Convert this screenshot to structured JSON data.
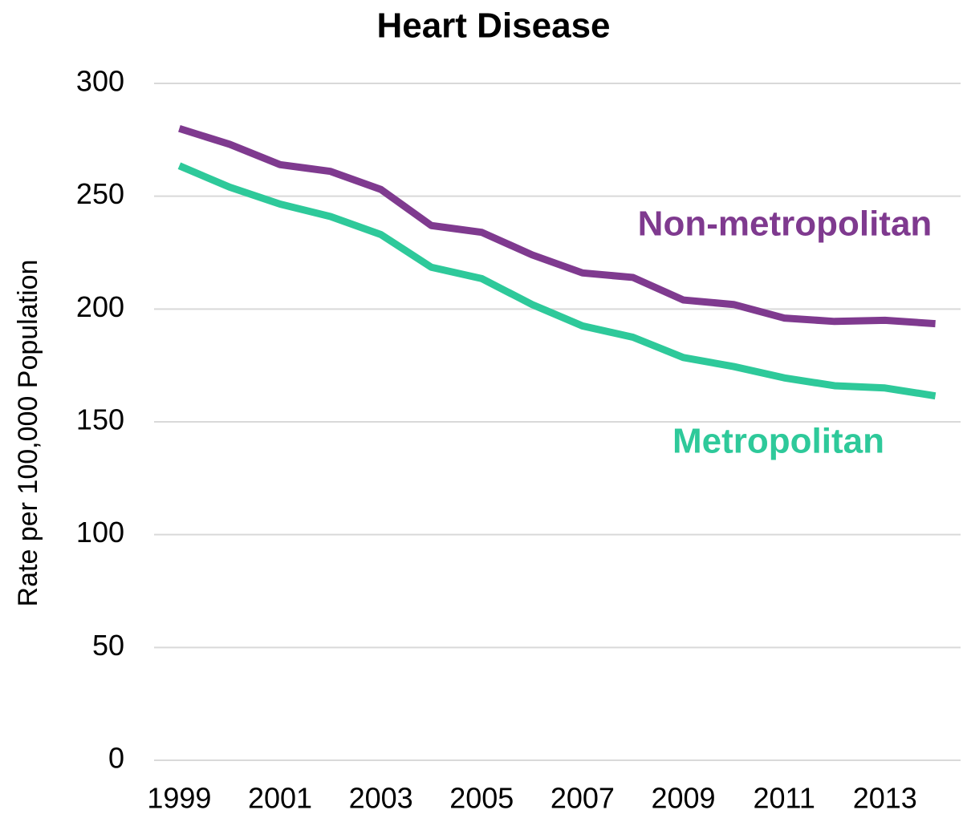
{
  "chart_data": {
    "type": "line",
    "title": "Heart Disease",
    "y_label": "Rate per 100,000 Population",
    "categories": [
      "1999",
      null,
      "2001",
      null,
      "2003",
      null,
      "2005",
      null,
      "2007",
      null,
      "2009",
      null,
      "2011",
      null,
      "2013",
      null
    ],
    "series": [
      {
        "name": "Non-metropolitan",
        "color": "#7f3a8f",
        "values": [
          280,
          273,
          264,
          261,
          253,
          237,
          234,
          224,
          216,
          214,
          204,
          202,
          196,
          194.5,
          195,
          193.5
        ]
      },
      {
        "name": "Metropolitan",
        "color": "#2ec99a",
        "values": [
          263.5,
          254,
          246.5,
          241,
          233,
          218.5,
          213.5,
          202,
          192.5,
          187.5,
          178.5,
          174.5,
          169.5,
          166,
          165,
          161.5
        ]
      }
    ],
    "ylim": [
      0,
      300
    ],
    "yticks": [
      0,
      50,
      100,
      150,
      200,
      250,
      300
    ],
    "grid": true
  }
}
